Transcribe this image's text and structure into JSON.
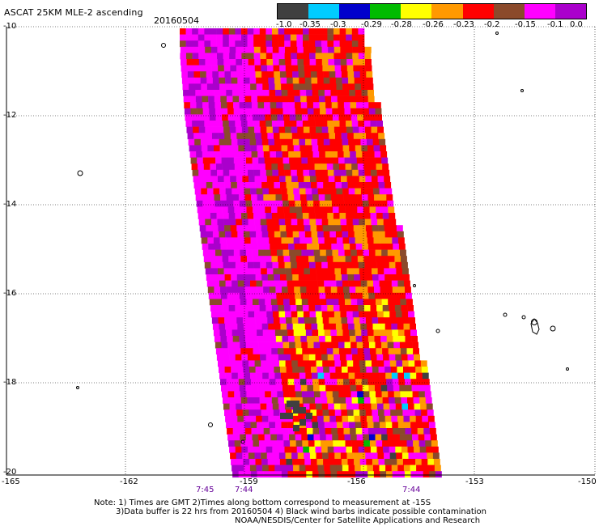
{
  "header": {
    "title": "ASCAT 25KM MLE-2 ascending",
    "date": "20160504"
  },
  "colorbar": {
    "colors": [
      "#404040",
      "#00ccff",
      "#0000cc",
      "#00bb00",
      "#ffff00",
      "#ff9900",
      "#ff0000",
      "#8b4a2b",
      "#ff00ff",
      "#aa00cc"
    ],
    "labels": [
      "-1.0",
      "-0.35",
      "-0.3",
      "-0.29",
      "-0.28",
      "-0.26",
      "-0.23",
      "-0.2",
      "-0.15",
      "-0.1",
      "0.0"
    ]
  },
  "axes": {
    "y_ticks": [
      "-10",
      "-12",
      "-14",
      "-16",
      "-18",
      "-20"
    ],
    "x_ticks": [
      "-165",
      "-162",
      "-159",
      "-156",
      "-153",
      "-150"
    ],
    "time_labels": [
      "7:45",
      "7:44",
      "7:44"
    ]
  },
  "footer": {
    "line1": "Note: 1) Times are GMT 2)Times along bottom correspond to measurement at -15S",
    "line2": "3)Data buffer is 22 hrs from 20160504 4) Black wind barbs indicate possible contamination",
    "line3": "NOAA/NESDIS/Center for Satellite Applications and Research"
  }
}
